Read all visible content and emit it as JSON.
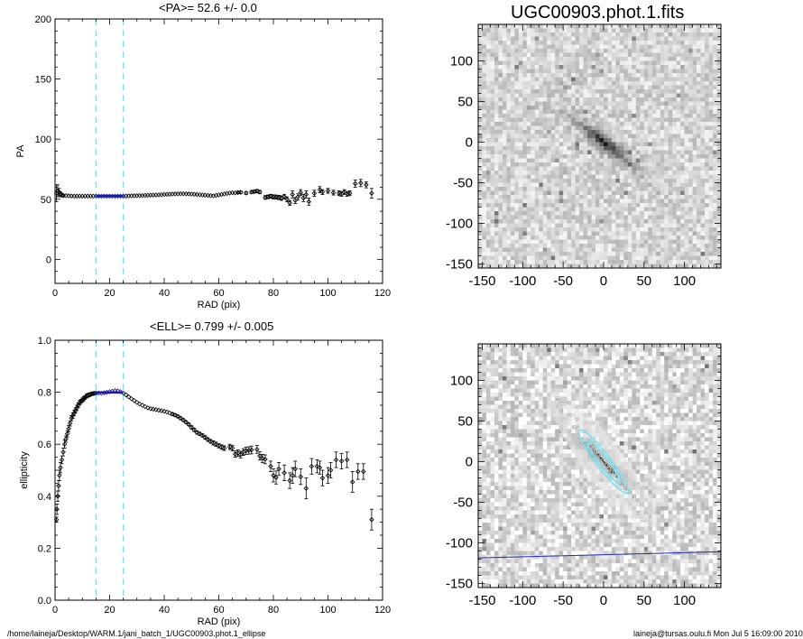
{
  "top_left_title": "<PA>=  52.6 +/-   0.0",
  "bottom_left_title": "<ELL>= 0.799 +/-  0.005",
  "image_title": "UGC00903.phot.1.fits",
  "footer_left": "/home/laineja/Desktop/WARM.1/jani_batch_1/UGC00903.phot.1_ellipse",
  "footer_right": "laineja@tursas.oulu.fi  Mon Jul  5 16:09:00 2010",
  "colors": {
    "marker": "#000000",
    "fit_range": "#1a1aa8",
    "vline": "#7de0ee",
    "axis": "#000000",
    "major_axis_line": "#2a2ab0",
    "contour": "#e8e8e8"
  },
  "chart_data": [
    {
      "type": "scatter",
      "name": "pa_profile",
      "xlabel": "RAD (pix)",
      "ylabel": "PA",
      "xlim": [
        0,
        120
      ],
      "ylim": [
        -20,
        200
      ],
      "xticks": [
        0,
        20,
        40,
        60,
        80,
        100,
        120
      ],
      "yticks": [
        0,
        50,
        100,
        150,
        200
      ],
      "vlines": [
        15,
        25
      ],
      "fit_range": [
        15,
        25
      ],
      "fit_value": 52.6,
      "points": [
        [
          0.5,
          55,
          7
        ],
        [
          1,
          57,
          5
        ],
        [
          1.5,
          56,
          3
        ],
        [
          2,
          54,
          2
        ],
        [
          2.5,
          53.5,
          1.5
        ],
        [
          3,
          53,
          1
        ],
        [
          4,
          53,
          0.8
        ],
        [
          5,
          52.8,
          0.6
        ],
        [
          6,
          52.7,
          0.5
        ],
        [
          7,
          52.6,
          0.5
        ],
        [
          8,
          52.6,
          0.4
        ],
        [
          9,
          52.6,
          0.4
        ],
        [
          10,
          52.6,
          0.4
        ],
        [
          11,
          52.6,
          0.4
        ],
        [
          12,
          52.6,
          0.4
        ],
        [
          13,
          52.6,
          0.3
        ],
        [
          14,
          52.6,
          0.3
        ],
        [
          15,
          52.6,
          0.3
        ],
        [
          16,
          52.6,
          0.3
        ],
        [
          17,
          52.6,
          0.3
        ],
        [
          18,
          52.6,
          0.3
        ],
        [
          19,
          52.6,
          0.3
        ],
        [
          20,
          52.6,
          0.3
        ],
        [
          21,
          52.6,
          0.3
        ],
        [
          22,
          52.6,
          0.3
        ],
        [
          23,
          52.6,
          0.3
        ],
        [
          24,
          52.6,
          0.3
        ],
        [
          25,
          52.6,
          0.3
        ],
        [
          26,
          52.7,
          0.3
        ],
        [
          27,
          52.8,
          0.3
        ],
        [
          28,
          52.8,
          0.3
        ],
        [
          29,
          52.9,
          0.3
        ],
        [
          30,
          53,
          0.3
        ],
        [
          31,
          53,
          0.3
        ],
        [
          32,
          53.1,
          0.3
        ],
        [
          33,
          53.2,
          0.3
        ],
        [
          34,
          53.3,
          0.4
        ],
        [
          35,
          53.4,
          0.4
        ],
        [
          36,
          53.5,
          0.4
        ],
        [
          37,
          53.6,
          0.4
        ],
        [
          38,
          53.7,
          0.4
        ],
        [
          39,
          53.8,
          0.4
        ],
        [
          40,
          54,
          0.4
        ],
        [
          41,
          54.1,
          0.4
        ],
        [
          42,
          54.2,
          0.4
        ],
        [
          43,
          54.3,
          0.4
        ],
        [
          44,
          54.4,
          0.4
        ],
        [
          45,
          54.5,
          0.5
        ],
        [
          46,
          54.6,
          0.5
        ],
        [
          47,
          54.6,
          0.5
        ],
        [
          48,
          54.5,
          0.5
        ],
        [
          49,
          54.4,
          0.5
        ],
        [
          50,
          54.3,
          0.5
        ],
        [
          51,
          54.2,
          0.5
        ],
        [
          52,
          54,
          0.5
        ],
        [
          53,
          53.8,
          0.5
        ],
        [
          54,
          53.6,
          0.5
        ],
        [
          55,
          53.4,
          0.6
        ],
        [
          56,
          53.2,
          0.6
        ],
        [
          57,
          53,
          0.6
        ],
        [
          58,
          52.8,
          0.6
        ],
        [
          59,
          53.2,
          0.6
        ],
        [
          60,
          53.6,
          0.7
        ],
        [
          61,
          54,
          0.7
        ],
        [
          62,
          54.4,
          0.7
        ],
        [
          63,
          54.8,
          0.8
        ],
        [
          64,
          55.2,
          0.8
        ],
        [
          65,
          55.5,
          0.9
        ],
        [
          66,
          55.3,
          0.9
        ],
        [
          67,
          55.6,
          1
        ],
        [
          68,
          55.8,
          1
        ],
        [
          70,
          55.2,
          1.1
        ],
        [
          72,
          56,
          1.2
        ],
        [
          73,
          56.4,
          1.2
        ],
        [
          74,
          56.8,
          1.3
        ],
        [
          75,
          56,
          1.4
        ],
        [
          77,
          51.5,
          1.5
        ],
        [
          78,
          52,
          1.5
        ],
        [
          79,
          52.5,
          1.6
        ],
        [
          80,
          52,
          1.7
        ],
        [
          81,
          51.8,
          1.7
        ],
        [
          82,
          51.5,
          1.8
        ],
        [
          83,
          51,
          1.9
        ],
        [
          84,
          52.2,
          1.9
        ],
        [
          85,
          50,
          2
        ],
        [
          86,
          47,
          2
        ],
        [
          87,
          54,
          3
        ],
        [
          88,
          49,
          2.5
        ],
        [
          89,
          52,
          2.5
        ],
        [
          90,
          55.5,
          2.5
        ],
        [
          91,
          51,
          3
        ],
        [
          92,
          54,
          3
        ],
        [
          93,
          48,
          3
        ],
        [
          95,
          55,
          2.5
        ],
        [
          97,
          58,
          2.5
        ],
        [
          98,
          56,
          2
        ],
        [
          100,
          57,
          2
        ],
        [
          102,
          55.5,
          2
        ],
        [
          104,
          55,
          2
        ],
        [
          105,
          54.5,
          2
        ],
        [
          106,
          56,
          2
        ],
        [
          107,
          54.5,
          2
        ],
        [
          108,
          55,
          2
        ],
        [
          110,
          63,
          3
        ],
        [
          112,
          63.5,
          3
        ],
        [
          114,
          62,
          2.5
        ],
        [
          116,
          55,
          4
        ]
      ]
    },
    {
      "type": "image",
      "name": "galaxy_image",
      "title": "UGC00903.phot.1.fits",
      "xlim": [
        -155,
        145
      ],
      "ylim": [
        -155,
        145
      ],
      "xticks": [
        -150,
        -100,
        -50,
        0,
        50,
        100
      ],
      "yticks": [
        -150,
        -100,
        -50,
        0,
        50,
        100
      ],
      "galaxy_pa": 52.6,
      "galaxy_ellipticity": 0.799
    },
    {
      "type": "scatter",
      "name": "ellipticity_profile",
      "xlabel": "RAD (pix)",
      "ylabel": "ellipticity",
      "xlim": [
        0,
        120
      ],
      "ylim": [
        0,
        1
      ],
      "xticks": [
        0,
        20,
        40,
        60,
        80,
        100,
        120
      ],
      "yticks": [
        0.0,
        0.2,
        0.4,
        0.6,
        0.8,
        1.0
      ],
      "ytick_labels": [
        "0.0",
        "0.2",
        "0.4",
        "0.6",
        "0.8",
        "1.0"
      ],
      "vlines": [
        15,
        25
      ],
      "fit_range": [
        15,
        25
      ],
      "fit_value": 0.799,
      "points": [
        [
          0.5,
          0.31,
          0.01
        ],
        [
          0.7,
          0.35,
          0.02
        ],
        [
          1,
          0.4,
          0.02
        ],
        [
          1.3,
          0.44,
          0.02
        ],
        [
          1.6,
          0.48,
          0.02
        ],
        [
          2,
          0.51,
          0.02
        ],
        [
          2.5,
          0.54,
          0.015
        ],
        [
          3,
          0.57,
          0.015
        ],
        [
          3.5,
          0.6,
          0.015
        ],
        [
          4,
          0.62,
          0.012
        ],
        [
          4.5,
          0.64,
          0.012
        ],
        [
          5,
          0.66,
          0.012
        ],
        [
          5.5,
          0.68,
          0.01
        ],
        [
          6,
          0.7,
          0.01
        ],
        [
          6.5,
          0.71,
          0.01
        ],
        [
          7,
          0.72,
          0.01
        ],
        [
          7.5,
          0.73,
          0.01
        ],
        [
          8,
          0.74,
          0.01
        ],
        [
          8.5,
          0.75,
          0.008
        ],
        [
          9,
          0.76,
          0.008
        ],
        [
          9.5,
          0.765,
          0.008
        ],
        [
          10,
          0.77,
          0.008
        ],
        [
          10.5,
          0.775,
          0.008
        ],
        [
          11,
          0.78,
          0.007
        ],
        [
          11.5,
          0.785,
          0.007
        ],
        [
          12,
          0.788,
          0.007
        ],
        [
          12.5,
          0.79,
          0.007
        ],
        [
          13,
          0.792,
          0.006
        ],
        [
          13.5,
          0.794,
          0.006
        ],
        [
          14,
          0.795,
          0.006
        ],
        [
          14.5,
          0.796,
          0.005
        ],
        [
          15,
          0.797,
          0.005
        ],
        [
          16,
          0.797,
          0.004
        ],
        [
          17,
          0.796,
          0.004
        ],
        [
          18,
          0.798,
          0.004
        ],
        [
          19,
          0.8,
          0.004
        ],
        [
          20,
          0.802,
          0.004
        ],
        [
          21,
          0.804,
          0.004
        ],
        [
          22,
          0.806,
          0.004
        ],
        [
          23,
          0.805,
          0.004
        ],
        [
          24,
          0.802,
          0.004
        ],
        [
          25,
          0.797,
          0.004
        ],
        [
          26,
          0.79,
          0.004
        ],
        [
          27,
          0.782,
          0.004
        ],
        [
          28,
          0.775,
          0.004
        ],
        [
          29,
          0.768,
          0.004
        ],
        [
          30,
          0.761,
          0.004
        ],
        [
          31,
          0.755,
          0.004
        ],
        [
          32,
          0.75,
          0.004
        ],
        [
          33,
          0.745,
          0.004
        ],
        [
          34,
          0.74,
          0.004
        ],
        [
          35,
          0.737,
          0.004
        ],
        [
          36,
          0.735,
          0.004
        ],
        [
          37,
          0.733,
          0.004
        ],
        [
          38,
          0.731,
          0.004
        ],
        [
          39,
          0.729,
          0.004
        ],
        [
          40,
          0.727,
          0.004
        ],
        [
          41,
          0.724,
          0.004
        ],
        [
          42,
          0.72,
          0.004
        ],
        [
          43,
          0.716,
          0.005
        ],
        [
          44,
          0.712,
          0.005
        ],
        [
          45,
          0.707,
          0.005
        ],
        [
          46,
          0.7,
          0.005
        ],
        [
          47,
          0.693,
          0.005
        ],
        [
          48,
          0.685,
          0.005
        ],
        [
          49,
          0.676,
          0.005
        ],
        [
          50,
          0.665,
          0.006
        ],
        [
          51,
          0.655,
          0.006
        ],
        [
          52,
          0.645,
          0.006
        ],
        [
          53,
          0.64,
          0.006
        ],
        [
          54,
          0.634,
          0.006
        ],
        [
          55,
          0.626,
          0.007
        ],
        [
          56,
          0.618,
          0.007
        ],
        [
          57,
          0.611,
          0.007
        ],
        [
          58,
          0.605,
          0.008
        ],
        [
          59,
          0.6,
          0.008
        ],
        [
          60,
          0.594,
          0.008
        ],
        [
          61,
          0.589,
          0.009
        ],
        [
          62,
          0.585,
          0.009
        ],
        [
          64,
          0.59,
          0.01
        ],
        [
          65,
          0.585,
          0.01
        ],
        [
          66,
          0.562,
          0.012
        ],
        [
          67,
          0.566,
          0.012
        ],
        [
          68,
          0.56,
          0.013
        ],
        [
          69,
          0.57,
          0.013
        ],
        [
          70,
          0.575,
          0.014
        ],
        [
          71,
          0.576,
          0.014
        ],
        [
          72,
          0.578,
          0.015
        ],
        [
          74,
          0.58,
          0.015
        ],
        [
          75,
          0.555,
          0.016
        ],
        [
          76,
          0.545,
          0.016
        ],
        [
          77,
          0.542,
          0.017
        ],
        [
          79,
          0.515,
          0.02
        ],
        [
          80,
          0.48,
          0.025
        ],
        [
          81,
          0.472,
          0.025
        ],
        [
          82,
          0.505,
          0.025
        ],
        [
          84,
          0.49,
          0.03
        ],
        [
          86,
          0.46,
          0.03
        ],
        [
          87,
          0.48,
          0.03
        ],
        [
          88,
          0.505,
          0.03
        ],
        [
          90,
          0.475,
          0.03
        ],
        [
          92,
          0.43,
          0.04
        ],
        [
          94,
          0.515,
          0.03
        ],
        [
          96,
          0.515,
          0.025
        ],
        [
          97,
          0.51,
          0.025
        ],
        [
          98,
          0.47,
          0.03
        ],
        [
          100,
          0.48,
          0.03
        ],
        [
          101,
          0.5,
          0.03
        ],
        [
          103,
          0.54,
          0.03
        ],
        [
          105,
          0.535,
          0.03
        ],
        [
          107,
          0.54,
          0.03
        ],
        [
          109,
          0.455,
          0.04
        ],
        [
          111,
          0.495,
          0.03
        ],
        [
          113,
          0.495,
          0.03
        ],
        [
          116,
          0.31,
          0.04
        ]
      ]
    },
    {
      "type": "image",
      "name": "masked_image_with_contours",
      "xlim": [
        -155,
        145
      ],
      "ylim": [
        -155,
        145
      ],
      "xticks": [
        -150,
        -100,
        -50,
        0,
        50,
        100
      ],
      "yticks": [
        -150,
        -100,
        -50,
        0,
        50,
        100
      ],
      "major_axis_pa": 52.6,
      "contour_ellipticity": 0.799
    }
  ]
}
